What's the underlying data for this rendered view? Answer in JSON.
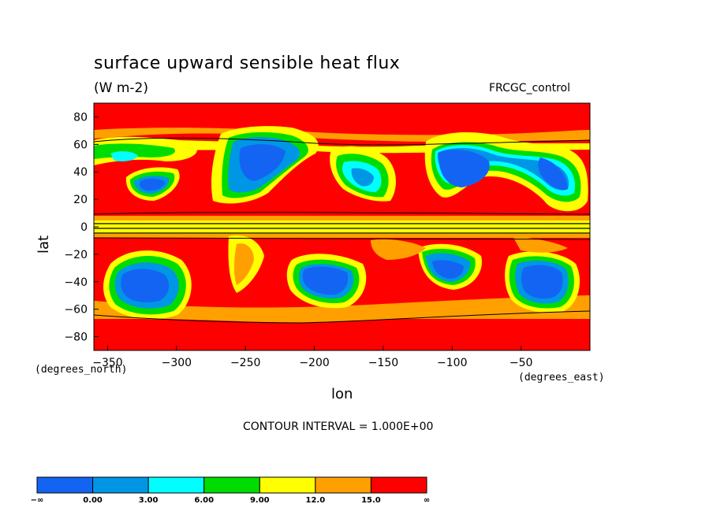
{
  "header": {
    "title": "surface upward sensible heat flux",
    "units": "(W m-2)",
    "run_name": "FRCGC_control"
  },
  "footer": {
    "contour_interval": "CONTOUR INTERVAL = 1.000E+00"
  },
  "chart_data": {
    "type": "heatmap",
    "title": "surface upward sensible heat flux",
    "subtitle": "(W m-2)",
    "annotation": "FRCGC_control",
    "xlabel": "lon",
    "ylabel": "lat",
    "x_unit_label": "(degrees_east)",
    "y_unit_label": "(degrees_north)",
    "xlim": [
      -360,
      0
    ],
    "ylim": [
      -90,
      90
    ],
    "x_ticks": [
      -350,
      -300,
      -250,
      -200,
      -150,
      -100,
      -50
    ],
    "x_tick_labels": [
      "−350",
      "−300",
      "−250",
      "−200",
      "−150",
      "−100",
      "−50"
    ],
    "y_ticks": [
      80,
      60,
      40,
      20,
      0,
      -20,
      -40,
      -60,
      -80
    ],
    "y_tick_labels": [
      "80",
      "60",
      "40",
      "20",
      "0",
      "−20",
      "−40",
      "−60",
      "−80"
    ],
    "grid": false,
    "contour_interval": 1.0,
    "colorbar": {
      "placement": "bottom",
      "bins": [
        {
          "color": "#1464f4",
          "from": "−∞",
          "to": "0.00"
        },
        {
          "color": "#0096e6",
          "from": "0.00",
          "to": "3.00"
        },
        {
          "color": "#00ffff",
          "from": "3.00",
          "to": "6.00"
        },
        {
          "color": "#00dc00",
          "from": "6.00",
          "to": "9.00"
        },
        {
          "color": "#ffff00",
          "from": "9.00",
          "to": "12.0"
        },
        {
          "color": "#ffa000",
          "from": "12.0",
          "to": "15.0"
        },
        {
          "color": "#ff0000",
          "from": "15.0",
          "to": "∞"
        }
      ],
      "labels": [
        "−∞",
        "0.00",
        "3.00",
        "6.00",
        "9.00",
        "12.0",
        "15.0",
        "∞"
      ]
    },
    "regions": [
      {
        "level": 0,
        "lon": -95,
        "lat": 45
      },
      {
        "level": 0,
        "lon": -35,
        "lat": 40
      },
      {
        "level": 0,
        "lon": -260,
        "lat": 45
      },
      {
        "level": 0,
        "lon": -320,
        "lat": 32
      },
      {
        "level": 0,
        "lon": -320,
        "lat": -45
      },
      {
        "level": 0,
        "lon": -180,
        "lat": -40
      },
      {
        "level": 0,
        "lon": -30,
        "lat": -45
      },
      {
        "level": 1,
        "lon": -170,
        "lat": 35
      },
      {
        "level": 1,
        "lon": -100,
        "lat": -32
      },
      {
        "level": 1,
        "lon": -60,
        "lat": 45
      }
    ]
  }
}
